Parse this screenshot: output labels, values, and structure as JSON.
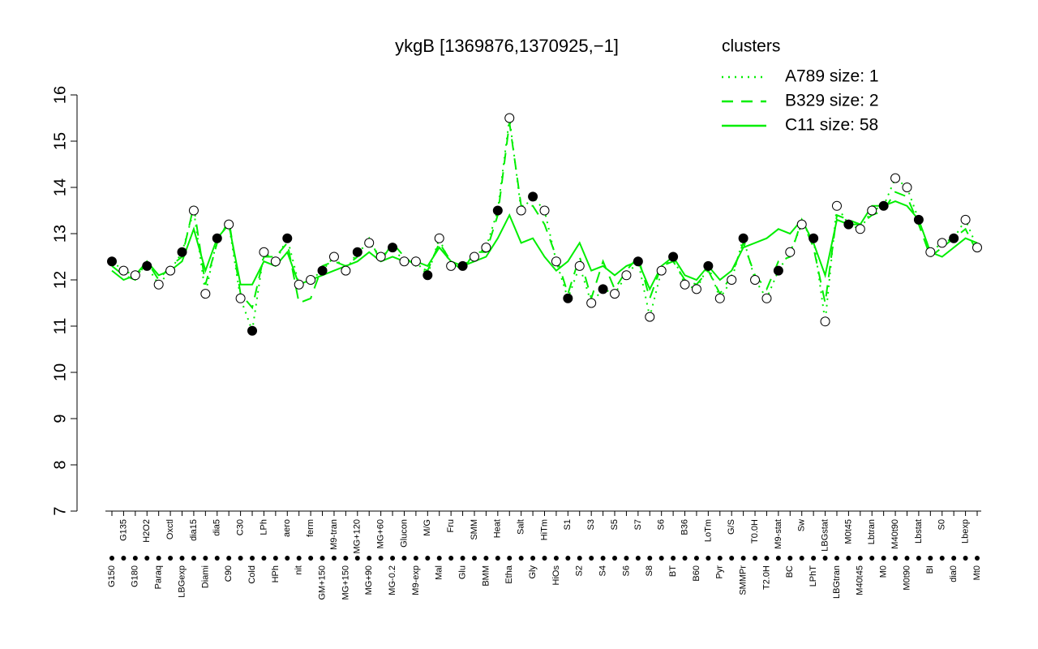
{
  "chart_data": {
    "type": "line",
    "title": "ykgB [1369876,1370925,−1]",
    "legend_title": "clusters",
    "legend_color": "#00ee00",
    "categories": [
      "G150",
      "G135",
      "G180",
      "H2O2",
      "Paraq",
      "Oxctl",
      "LBGexp",
      "dia15",
      "Diami",
      "dia5",
      "C90",
      "C30",
      "Cold",
      "LPh",
      "HPh",
      "aero",
      "nit",
      "ferm",
      "GM+150",
      "M9-tran",
      "MG+150",
      "MG+120",
      "MG+90",
      "MG+60",
      "MG-0.2",
      "Glucon",
      "M9-exp",
      "M/G",
      "Mal",
      "Fru",
      "Glu",
      "SMM",
      "BMM",
      "Heat",
      "Etha",
      "Salt",
      "Gly",
      "HiTm",
      "HiOs",
      "S1",
      "S2",
      "S3",
      "S4",
      "S5",
      "S6",
      "S7",
      "S8",
      "S6",
      "BT",
      "B36",
      "B60",
      "LoTm",
      "Pyr",
      "G/S",
      "SMMPr",
      "T0.0H",
      "T2.0H",
      "M9-stat",
      "BC",
      "Sw",
      "LPhT",
      "LBGstat",
      "LBGtran",
      "M0t45",
      "M40t45",
      "Lbtran",
      "M0",
      "M40t90",
      "M0t90",
      "Lbstat",
      "BI",
      "S0",
      "dia0",
      "Lbexp",
      "Mt0"
    ],
    "values": [
      12.4,
      12.2,
      12.1,
      12.3,
      11.9,
      12.2,
      12.6,
      13.5,
      11.7,
      12.9,
      13.2,
      11.6,
      10.9,
      12.6,
      12.4,
      12.9,
      11.9,
      12.0,
      12.2,
      12.5,
      12.2,
      12.6,
      12.8,
      12.5,
      12.7,
      12.4,
      12.4,
      12.1,
      12.9,
      12.3,
      12.3,
      12.5,
      12.7,
      13.5,
      15.5,
      13.5,
      13.8,
      13.5,
      12.4,
      11.6,
      12.3,
      11.5,
      11.8,
      11.7,
      12.1,
      12.4,
      11.2,
      12.2,
      12.5,
      11.9,
      11.8,
      12.3,
      11.6,
      12.0,
      12.9,
      12.0,
      11.6,
      12.2,
      12.6,
      13.2,
      12.9,
      11.1,
      13.6,
      13.2,
      13.1,
      13.5,
      13.6,
      14.2,
      14.0,
      13.3,
      12.6,
      12.8,
      12.9,
      13.3,
      12.7
    ],
    "series": [
      {
        "name": "A789 size: 1",
        "color": "#00ee00",
        "values": [
          12.4,
          12.2,
          12.1,
          12.3,
          11.9,
          12.2,
          12.6,
          13.5,
          11.7,
          12.9,
          13.2,
          11.6,
          10.9,
          12.6,
          12.4,
          12.9,
          11.9,
          12.0,
          12.2,
          12.5,
          12.2,
          12.6,
          12.8,
          12.5,
          12.7,
          12.4,
          12.4,
          12.1,
          12.9,
          12.3,
          12.3,
          12.5,
          12.7,
          13.5,
          15.5,
          13.5,
          13.8,
          13.5,
          12.4,
          11.6,
          12.3,
          11.5,
          11.8,
          11.7,
          12.1,
          12.4,
          11.2,
          12.2,
          12.5,
          11.9,
          11.8,
          12.3,
          11.6,
          12.0,
          12.9,
          12.0,
          11.6,
          12.2,
          12.6,
          13.2,
          12.9,
          11.1,
          13.6,
          13.2,
          13.1,
          13.5,
          13.6,
          14.2,
          14.0,
          13.3,
          12.6,
          12.8,
          12.9,
          13.3,
          12.7
        ]
      },
      {
        "name": "B329 size: 2",
        "color": "#00ee00",
        "values": [
          12.3,
          12.1,
          12.0,
          12.4,
          12.0,
          12.3,
          12.5,
          13.6,
          11.9,
          12.8,
          13.3,
          11.7,
          11.4,
          12.5,
          12.5,
          12.8,
          11.5,
          11.6,
          12.3,
          12.4,
          12.3,
          12.5,
          12.9,
          12.4,
          12.8,
          12.5,
          12.3,
          12.2,
          12.8,
          12.4,
          12.2,
          12.6,
          12.6,
          13.4,
          15.4,
          13.6,
          13.6,
          13.2,
          12.5,
          11.7,
          12.5,
          11.6,
          12.4,
          11.8,
          12.2,
          12.5,
          11.6,
          12.3,
          12.4,
          12.0,
          11.9,
          12.2,
          11.7,
          12.1,
          12.8,
          12.1,
          11.8,
          12.4,
          12.5,
          13.3,
          12.7,
          11.5,
          13.4,
          13.3,
          13.2,
          13.4,
          13.5,
          13.9,
          13.8,
          13.2,
          12.5,
          12.7,
          12.9,
          13.1,
          12.6
        ]
      },
      {
        "name": "C11 size: 58",
        "color": "#00ee00",
        "values": [
          12.2,
          12.0,
          12.1,
          12.4,
          12.1,
          12.2,
          12.4,
          13.1,
          12.2,
          12.9,
          13.2,
          11.9,
          11.9,
          12.4,
          12.3,
          12.6,
          11.9,
          12.0,
          12.1,
          12.2,
          12.3,
          12.4,
          12.6,
          12.4,
          12.5,
          12.4,
          12.4,
          12.3,
          12.7,
          12.4,
          12.3,
          12.4,
          12.5,
          12.9,
          13.4,
          12.8,
          12.9,
          12.5,
          12.2,
          12.4,
          12.8,
          12.2,
          12.3,
          12.1,
          12.3,
          12.4,
          11.8,
          12.3,
          12.5,
          12.1,
          12.0,
          12.3,
          12.0,
          12.2,
          12.7,
          12.8,
          12.9,
          13.1,
          13.0,
          13.3,
          12.8,
          12.1,
          13.3,
          13.2,
          13.2,
          13.6,
          13.6,
          13.7,
          13.6,
          13.3,
          12.6,
          12.5,
          12.7,
          12.9,
          12.8
        ]
      }
    ],
    "ylim": [
      7,
      16
    ],
    "yticks": [
      7,
      8,
      9,
      10,
      11,
      12,
      13,
      14,
      15,
      16
    ]
  }
}
